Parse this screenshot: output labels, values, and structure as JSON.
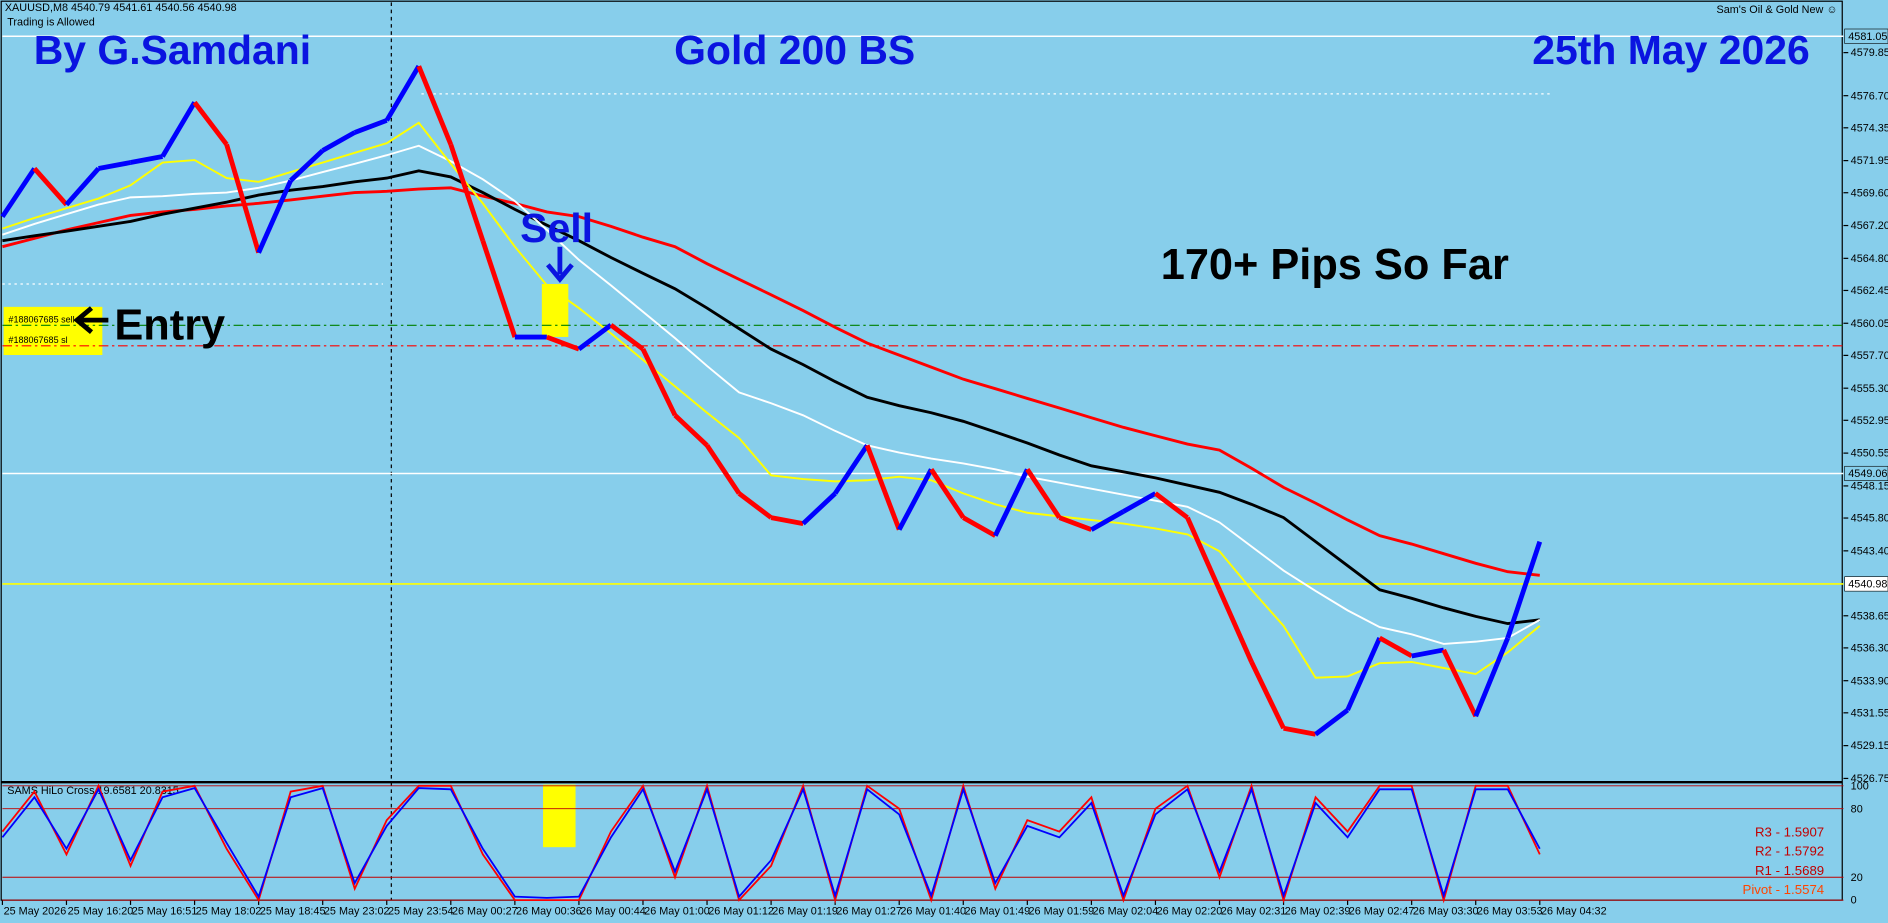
{
  "header": {
    "symbol_info": "XAUUSD,M8  4540.79 4541.61 4540.56 4540.98",
    "status": "Trading is Allowed",
    "expert": "Sam's Oil & Gold New ☺"
  },
  "chart_data": {
    "type": "line",
    "title": "Gold 200 BS",
    "author": "By G.Samdani",
    "date": "25th May 2026",
    "annotations": {
      "signal": "Sell",
      "result": "170+ Pips So Far",
      "entry": "Entry"
    },
    "orders": [
      {
        "label": "#188067685 sell",
        "value": 4559.9,
        "color": "#008000"
      },
      {
        "label": "#188067685 sl",
        "value": 4558.4,
        "color": "#ff0000"
      }
    ],
    "levels": [
      {
        "value": 4581.05,
        "color": "#ffffff"
      },
      {
        "value": 4549.06,
        "color": "#ffffff"
      },
      {
        "value": 4540.98,
        "color": "#ffff00"
      }
    ],
    "categories": [
      "25 May 2026",
      null,
      "25 May 16:20",
      null,
      "25 May 16:51",
      null,
      "25 May 18:02",
      null,
      "25 May 18:45",
      null,
      "25 May 23:02",
      null,
      "25 May 23:54",
      null,
      "26 May 00:27",
      null,
      "26 May 00:36",
      null,
      "26 May 00:44",
      null,
      "26 May 01:00",
      null,
      "26 May 01:12",
      null,
      "26 May 01:19",
      null,
      "26 May 01:27",
      null,
      "26 May 01:40",
      null,
      "26 May 01:49",
      null,
      "26 May 01:59",
      null,
      "26 May 02:04",
      null,
      "26 May 02:20",
      null,
      "26 May 02:31",
      null,
      "26 May 02:39",
      null,
      "26 May 02:47",
      null,
      "26 May 03:30",
      null,
      "26 May 03:53",
      null,
      "26 May 04:32"
    ],
    "price": {
      "up_color": "#0000ff",
      "down_color": "#ff0000",
      "values": [
        4567.85,
        4571.37,
        4568.73,
        4571.37,
        4571.81,
        4572.25,
        4576.21,
        4573.13,
        4565.21,
        4570.49,
        4572.69,
        4574.01,
        4574.89,
        4578.86,
        4573.13,
        4566.09,
        4559.04,
        4559.04,
        4558.16,
        4559.92,
        4558.16,
        4553.32,
        4551.12,
        4547.6,
        4545.83,
        4545.39,
        4547.6,
        4551.12,
        4544.95,
        4549.36,
        4545.83,
        4544.51,
        4549.36,
        4545.83,
        4544.95,
        4546.28,
        4547.6,
        4545.83,
        4540.55,
        4535.27,
        4530.42,
        4529.98,
        4531.75,
        4537.03,
        4535.71,
        4536.15,
        4531.3,
        4537.03,
        4544.07
      ]
    },
    "series": [
      {
        "color": "#ff0000",
        "values": [
          4565.65,
          4566.26,
          4566.88,
          4567.41,
          4567.94,
          4568.2,
          4568.38,
          4568.64,
          4568.82,
          4569.08,
          4569.35,
          4569.61,
          4569.7,
          4569.87,
          4569.96,
          4569.35,
          4568.82,
          4568.2,
          4567.85,
          4567.14,
          4566.35,
          4565.65,
          4564.41,
          4563.27,
          4562.13,
          4560.98,
          4559.75,
          4558.6,
          4557.72,
          4556.84,
          4555.96,
          4555.26,
          4554.55,
          4553.85,
          4553.14,
          4552.44,
          4551.82,
          4551.21,
          4550.77,
          4549.44,
          4548.04,
          4546.89,
          4545.66,
          4544.51,
          4543.9,
          4543.19,
          4542.49,
          4541.87,
          4541.61
        ]
      },
      {
        "color": "#000000",
        "values": [
          4566.09,
          4566.44,
          4566.79,
          4567.14,
          4567.5,
          4568.03,
          4568.47,
          4568.91,
          4569.43,
          4569.79,
          4570.05,
          4570.4,
          4570.67,
          4571.2,
          4570.76,
          4569.61,
          4568.38,
          4567.23,
          4566.09,
          4564.86,
          4563.71,
          4562.57,
          4561.16,
          4559.66,
          4558.16,
          4557.02,
          4555.78,
          4554.64,
          4554.02,
          4553.5,
          4552.88,
          4552.09,
          4551.29,
          4550.41,
          4549.62,
          4549.18,
          4548.74,
          4548.21,
          4547.68,
          4546.8,
          4545.83,
          4544.07,
          4542.31,
          4540.55,
          4539.93,
          4539.23,
          4538.61,
          4538.08,
          4538.35
        ]
      },
      {
        "color": "#ffffff",
        "values": [
          4566.53,
          4567.32,
          4568.03,
          4568.73,
          4569.26,
          4569.35,
          4569.52,
          4569.61,
          4569.96,
          4570.49,
          4571.11,
          4571.72,
          4572.34,
          4573.04,
          4571.9,
          4570.58,
          4568.99,
          4566.88,
          4564.68,
          4562.83,
          4560.89,
          4558.96,
          4556.93,
          4554.99,
          4554.2,
          4553.32,
          4552.17,
          4551.12,
          4550.59,
          4550.15,
          4549.8,
          4549.36,
          4548.83,
          4548.39,
          4547.95,
          4547.51,
          4547.07,
          4546.63,
          4545.48,
          4543.72,
          4541.96,
          4540.46,
          4539.05,
          4537.82,
          4537.29,
          4536.59,
          4536.76,
          4537.03,
          4538.35
        ]
      },
      {
        "color": "#ffff00",
        "values": [
          4566.97,
          4567.76,
          4568.47,
          4569.17,
          4570.14,
          4571.81,
          4571.99,
          4570.67,
          4570.4,
          4571.11,
          4571.81,
          4572.52,
          4573.22,
          4574.72,
          4571.72,
          4568.82,
          4565.65,
          4562.83,
          4561.16,
          4559.31,
          4557.37,
          4555.43,
          4553.5,
          4551.65,
          4548.92,
          4548.65,
          4548.48,
          4548.56,
          4548.83,
          4548.56,
          4547.6,
          4546.8,
          4546.19,
          4545.92,
          4545.66,
          4545.39,
          4545.04,
          4544.6,
          4543.37,
          4540.55,
          4537.91,
          4534.12,
          4534.21,
          4535.18,
          4535.27,
          4534.83,
          4534.39,
          4535.97,
          4537.91
        ]
      }
    ],
    "ylim": [
      4526.65,
      4583.7
    ],
    "yticks": [
      4526.75,
      4529.15,
      4531.55,
      {
        "value": 4533.9,
        "label": "4533.90"
      },
      {
        "value": 4536.3,
        "label": "4536.30"
      },
      4538.65,
      {
        "value": 4543.4,
        "label": "4543.40"
      },
      {
        "value": 4545.8,
        "label": "4545.80"
      },
      4548.15,
      4550.55,
      4552.95,
      {
        "value": 4555.3,
        "label": "4555.30"
      },
      {
        "value": 4557.7,
        "label": "4557.70"
      },
      4560.05,
      4562.45,
      {
        "value": 4564.8,
        "label": "4564.80"
      },
      {
        "value": 4567.2,
        "label": "4567.20"
      },
      {
        "value": 4569.6,
        "label": "4569.60"
      },
      4571.95,
      4574.35,
      {
        "value": 4576.7,
        "label": "4576.70"
      },
      4579.85
    ],
    "oscillator": {
      "title": "SAMS HiLo Cross 19.6581 20.8315",
      "ylim": [
        0,
        100
      ],
      "yticks": [
        0,
        20,
        80,
        100
      ],
      "pivots": [
        "R3 - 1.5907",
        "R2 - 1.5792",
        "R1 - 1.5689",
        "Pivot - 1.5574"
      ],
      "series": [
        {
          "color": "#ff0000",
          "values": [
            60,
            95,
            40,
            100,
            30,
            95,
            100,
            45,
            0,
            95,
            100,
            10,
            70,
            100,
            100,
            40,
            0,
            0,
            0,
            60,
            100,
            20,
            100,
            0,
            30,
            100,
            0,
            100,
            80,
            0,
            100,
            10,
            70,
            60,
            90,
            0,
            80,
            100,
            20,
            100,
            0,
            90,
            60,
            100,
            100,
            0,
            100,
            100,
            40
          ]
        },
        {
          "color": "#0000ff",
          "values": [
            55,
            90,
            45,
            97,
            35,
            90,
            98,
            50,
            3,
            90,
            98,
            15,
            65,
            98,
            97,
            45,
            3,
            2,
            3,
            55,
            97,
            25,
            97,
            3,
            35,
            97,
            4,
            97,
            75,
            4,
            97,
            15,
            65,
            55,
            85,
            4,
            75,
            97,
            25,
            97,
            4,
            85,
            55,
            97,
            97,
            4,
            97,
            97,
            45
          ]
        }
      ]
    }
  }
}
